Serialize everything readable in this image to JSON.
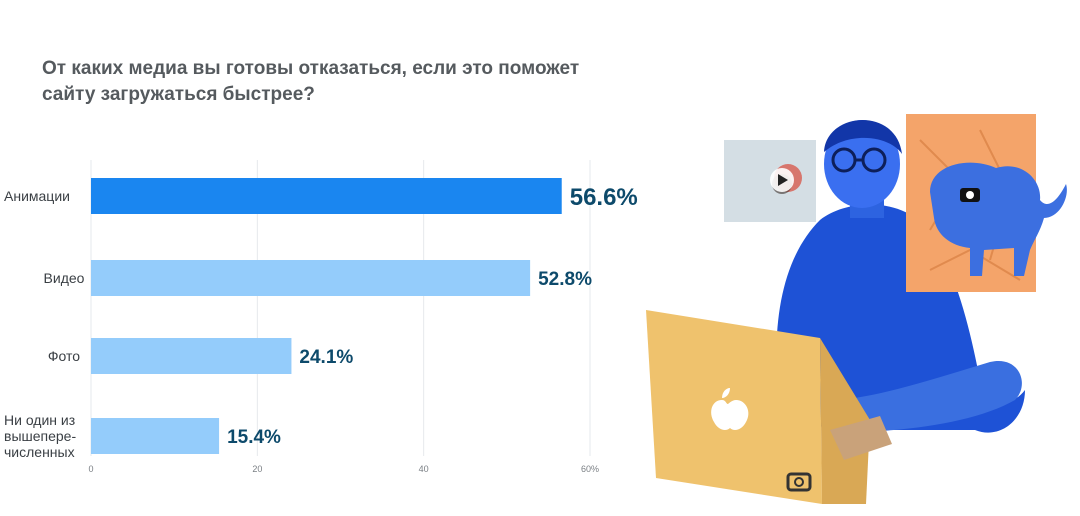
{
  "chart_data": {
    "type": "bar",
    "orientation": "horizontal",
    "title": "От каких медиа вы готовы отказаться, если это поможет сайту загружаться быстрее?",
    "categories": [
      [
        "Анимации"
      ],
      [
        "Видео"
      ],
      [
        "Фото"
      ],
      [
        "Ни один из",
        "вышепере-",
        "численных"
      ]
    ],
    "values": [
      56.6,
      52.8,
      24.1,
      15.4
    ],
    "value_labels": [
      "56.6%",
      "52.8%",
      "24.1%",
      "15.4%"
    ],
    "x_ticks": [
      0,
      20,
      40,
      60
    ],
    "x_tick_labels": [
      "0",
      "20",
      "40",
      "60%"
    ],
    "xlim": [
      0,
      60
    ],
    "grid": true,
    "colors": {
      "highlight": "#1a86f0",
      "bar": "#94ccfb",
      "value_text": "#0d4a6b"
    }
  }
}
